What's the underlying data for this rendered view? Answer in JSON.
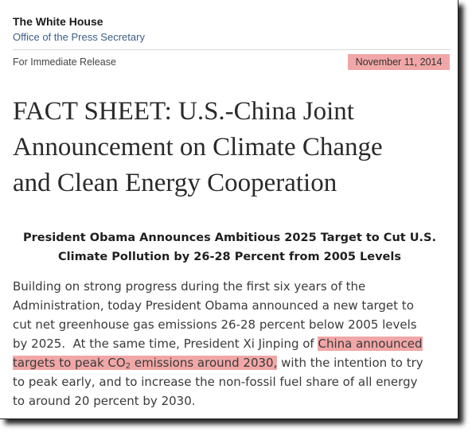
{
  "header": {
    "brand": "The White House",
    "office": "Office of the Press Secretary"
  },
  "release": {
    "label": "For Immediate Release",
    "date": "November 11, 2014"
  },
  "title_lines": [
    "FACT SHEET: U.S.-China Joint",
    "Announcement on Climate Change",
    "and Clean Energy Cooperation"
  ],
  "subtitle_lines": [
    "President Obama Announces Ambitious 2025 Target to Cut U.S.",
    "Climate Pollution by 26-28 Percent from 2005 Levels"
  ],
  "body": {
    "line1": "Building on strong progress during the first six years of the",
    "line2": "Administration, today President Obama announced a new target to",
    "line3": "cut net greenhouse gas emissions 26-28 percent below 2005 levels",
    "line4_plain": "by 2025.  At the same time, President Xi Jinping of ",
    "line4_highlight": "China announced",
    "line5_highlight_a": "targets to peak CO",
    "line5_sub": "2",
    "line5_highlight_b": " emissions around 2030,",
    "line5_plain": " with the intention to try",
    "line6": "to peak early, and to increase the non-fossil fuel share of all energy",
    "line7": "to around 20 percent by 2030."
  },
  "colors": {
    "highlight": "#f1a7a7",
    "office_link": "#3b5e86"
  }
}
